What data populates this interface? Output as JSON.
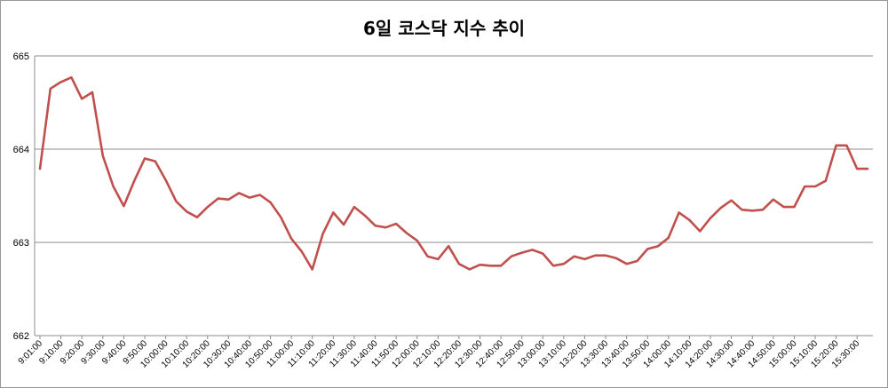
{
  "chart_data": {
    "type": "line",
    "title": "6일 코스닥 지수 추이",
    "xlabel": "",
    "ylabel": "",
    "ylim": [
      662,
      665
    ],
    "yticks": [
      "662",
      "663",
      "664",
      "665"
    ],
    "grid": true,
    "legend": "none",
    "colors": {
      "line": "#c0504d",
      "grid": "#8c8c8c",
      "axis": "#8c8c8c"
    },
    "x": [
      "9:01:00",
      "9:05:00",
      "9:10:00",
      "9:15:00",
      "9:20:00",
      "9:25:00",
      "9:30:00",
      "9:35:00",
      "9:40:00",
      "9:45:00",
      "9:50:00",
      "9:55:00",
      "10:00:00",
      "10:05:00",
      "10:10:00",
      "10:15:00",
      "10:20:00",
      "10:25:00",
      "10:30:00",
      "10:35:00",
      "10:40:00",
      "10:45:00",
      "10:50:00",
      "10:55:00",
      "11:00:00",
      "11:05:00",
      "11:10:00",
      "11:15:00",
      "11:20:00",
      "11:25:00",
      "11:30:00",
      "11:35:00",
      "11:40:00",
      "11:45:00",
      "11:50:00",
      "11:55:00",
      "12:00:00",
      "12:05:00",
      "12:10:00",
      "12:15:00",
      "12:20:00",
      "12:25:00",
      "12:30:00",
      "12:35:00",
      "12:40:00",
      "12:45:00",
      "12:50:00",
      "12:55:00",
      "13:00:00",
      "13:05:00",
      "13:10:00",
      "13:15:00",
      "13:20:00",
      "13:25:00",
      "13:30:00",
      "13:35:00",
      "13:40:00",
      "13:45:00",
      "13:50:00",
      "13:55:00",
      "14:00:00",
      "14:05:00",
      "14:10:00",
      "14:15:00",
      "14:20:00",
      "14:25:00",
      "14:30:00",
      "14:35:00",
      "14:40:00",
      "14:45:00",
      "14:50:00",
      "14:55:00",
      "15:00:00",
      "15:05:00",
      "15:10:00",
      "15:15:00",
      "15:20:00",
      "15:25:00",
      "15:30:00",
      "15:35:00"
    ],
    "x_tick_labels": [
      "9:01:00",
      "9:10:00",
      "9:20:00",
      "9:30:00",
      "9:40:00",
      "9:50:00",
      "10:00:00",
      "10:10:00",
      "10:20:00",
      "10:30:00",
      "10:40:00",
      "10:50:00",
      "11:00:00",
      "11:10:00",
      "11:20:00",
      "11:30:00",
      "11:40:00",
      "11:50:00",
      "12:00:00",
      "12:10:00",
      "12:20:00",
      "12:30:00",
      "12:40:00",
      "12:50:00",
      "13:00:00",
      "13:10:00",
      "13:20:00",
      "13:30:00",
      "13:40:00",
      "13:50:00",
      "14:00:00",
      "14:10:00",
      "14:20:00",
      "14:30:00",
      "14:40:00",
      "14:50:00",
      "15:00:00",
      "15:10:00",
      "15:20:00",
      "15:30:00"
    ],
    "series": [
      {
        "name": "",
        "values": [
          663.79,
          664.65,
          664.72,
          664.77,
          664.54,
          664.61,
          663.93,
          663.6,
          663.39,
          663.66,
          663.9,
          663.87,
          663.67,
          663.44,
          663.33,
          663.27,
          663.38,
          663.47,
          663.46,
          663.53,
          663.48,
          663.51,
          663.43,
          663.27,
          663.04,
          662.9,
          662.71,
          663.09,
          663.32,
          663.19,
          663.38,
          663.29,
          663.18,
          663.16,
          663.2,
          663.1,
          663.02,
          662.85,
          662.82,
          662.96,
          662.77,
          662.71,
          662.76,
          662.75,
          662.75,
          662.85,
          662.89,
          662.92,
          662.88,
          662.75,
          662.77,
          662.85,
          662.82,
          662.86,
          662.86,
          662.83,
          662.77,
          662.8,
          662.93,
          662.96,
          663.05,
          663.32,
          663.24,
          663.12,
          663.26,
          663.37,
          663.45,
          663.35,
          663.34,
          663.35,
          663.46,
          663.38,
          663.38,
          663.6,
          663.6,
          663.66,
          664.04,
          664.04,
          663.79,
          663.79
        ]
      }
    ]
  }
}
